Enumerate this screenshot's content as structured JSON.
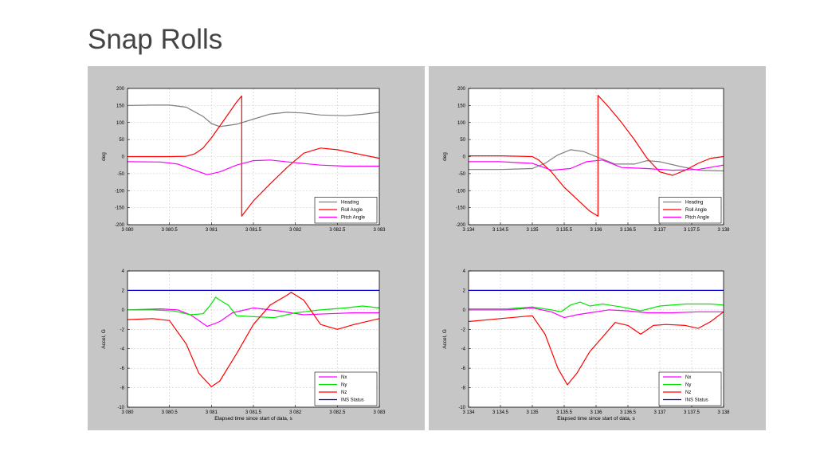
{
  "slide": {
    "title": "Snap Rolls"
  },
  "colors": {
    "Heading": "#7f7f7f",
    "Roll Angle": "#ff0000",
    "Pitch Angle": "#ff00ff",
    "Nx": "#ff00ff",
    "Ny": "#00e600",
    "Nz": "#ff0000",
    "INS Status": "#0000cc"
  },
  "panels": [
    {
      "xticklabels": [
        "3 080",
        "3 080.5",
        "3 081",
        "3 081.5",
        "3 082",
        "3 082.5",
        "3 083"
      ],
      "xlabel": "Elapsed time since start of data, s"
    },
    {
      "xticklabels": [
        "3 134",
        "3 134.5",
        "3 135",
        "3 135.5",
        "3 136",
        "3 136.5",
        "3 137",
        "3 137.5",
        "3 138"
      ],
      "xlabel": "Elapsed time since start of data, s"
    }
  ],
  "chart_data": [
    {
      "type": "line",
      "title": "",
      "xlabel": "",
      "ylabel": "deg",
      "xlim": [
        3080,
        3083
      ],
      "ylim": [
        -200,
        200
      ],
      "xticks": [
        3080,
        3080.5,
        3081,
        3081.5,
        3082,
        3082.5,
        3083
      ],
      "yticks": [
        -200,
        -150,
        -100,
        -50,
        0,
        50,
        100,
        150,
        200
      ],
      "yticklabels": [
        "-200",
        "-150",
        "-100",
        "-50",
        "0",
        "50",
        "100",
        "150",
        "200"
      ],
      "grid": true,
      "legend": "bottom-right",
      "series": [
        {
          "name": "Heading",
          "x": [
            3080,
            3080.3,
            3080.5,
            3080.7,
            3080.9,
            3081.0,
            3081.1,
            3081.3,
            3081.5,
            3081.7,
            3081.9,
            3082.1,
            3082.3,
            3082.6,
            3082.8,
            3083.0
          ],
          "y": [
            150,
            151,
            151,
            145,
            118,
            97,
            88,
            95,
            110,
            125,
            130,
            128,
            122,
            120,
            124,
            130
          ]
        },
        {
          "name": "Roll Angle",
          "x": [
            3080,
            3080.5,
            3080.7,
            3080.8,
            3080.9,
            3081.0,
            3081.1,
            3081.2,
            3081.3,
            3081.36,
            3081.36,
            3081.5,
            3081.7,
            3081.9,
            3082.1,
            3082.3,
            3082.5,
            3082.7,
            3082.9,
            3083.0
          ],
          "y": [
            0,
            0,
            1,
            8,
            25,
            55,
            90,
            125,
            160,
            178,
            -175,
            -130,
            -80,
            -32,
            10,
            25,
            20,
            10,
            0,
            -5
          ]
        },
        {
          "name": "Pitch Angle",
          "x": [
            3080,
            3080.4,
            3080.6,
            3080.8,
            3080.95,
            3081.1,
            3081.3,
            3081.5,
            3081.7,
            3082.0,
            3082.3,
            3082.6,
            3083.0
          ],
          "y": [
            -15,
            -16,
            -22,
            -40,
            -53,
            -45,
            -25,
            -12,
            -10,
            -18,
            -25,
            -28,
            -28
          ]
        }
      ]
    },
    {
      "type": "line",
      "title": "",
      "xlabel": "Elapsed time since start of data, s",
      "ylabel": "Accel, G",
      "xlim": [
        3080,
        3083
      ],
      "ylim": [
        -10,
        4
      ],
      "xticks": [
        3080,
        3080.5,
        3081,
        3081.5,
        3082,
        3082.5,
        3083
      ],
      "yticks": [
        -10,
        -8,
        -6,
        -4,
        -2,
        0,
        2,
        4
      ],
      "yticklabels": [
        "-10",
        "-8",
        "-6",
        "-4",
        "-2",
        "0",
        "2",
        "4"
      ],
      "grid": true,
      "legend": "bottom-right",
      "series": [
        {
          "name": "Nx",
          "x": [
            3080,
            3080.4,
            3080.6,
            3080.75,
            3080.95,
            3081.1,
            3081.25,
            3081.5,
            3081.8,
            3082.1,
            3082.4,
            3082.7,
            3083.0
          ],
          "y": [
            0,
            0.1,
            0,
            -0.5,
            -1.7,
            -1.2,
            -0.3,
            0.2,
            -0.1,
            -0.5,
            -0.4,
            -0.3,
            -0.3
          ]
        },
        {
          "name": "Ny",
          "x": [
            3080,
            3080.3,
            3080.55,
            3080.75,
            3080.9,
            3080.98,
            3081.05,
            3081.12,
            3081.2,
            3081.3,
            3081.5,
            3081.75,
            3082.0,
            3082.3,
            3082.6,
            3082.8,
            3083.0
          ],
          "y": [
            0,
            0,
            -0.1,
            -0.5,
            -0.4,
            0.4,
            1.3,
            0.9,
            0.5,
            -0.6,
            -0.7,
            -0.8,
            -0.3,
            0,
            0.2,
            0.4,
            0.2
          ]
        },
        {
          "name": "Nz",
          "x": [
            3080,
            3080.3,
            3080.5,
            3080.7,
            3080.85,
            3081.0,
            3081.1,
            3081.3,
            3081.5,
            3081.7,
            3081.9,
            3081.95,
            3082.1,
            3082.3,
            3082.5,
            3082.7,
            3083.0
          ],
          "y": [
            -1,
            -0.9,
            -1.1,
            -3.5,
            -6.5,
            -7.9,
            -7.3,
            -4.5,
            -1.5,
            0.5,
            1.5,
            1.8,
            1.0,
            -1.5,
            -2.0,
            -1.5,
            -0.9
          ]
        },
        {
          "name": "INS Status",
          "x": [
            3080,
            3083
          ],
          "y": [
            2,
            2
          ]
        }
      ]
    },
    {
      "type": "line",
      "title": "",
      "xlabel": "",
      "ylabel": "deg",
      "xlim": [
        3134,
        3138
      ],
      "ylim": [
        -200,
        200
      ],
      "xticks": [
        3134,
        3134.5,
        3135,
        3135.5,
        3136,
        3136.5,
        3137,
        3137.5,
        3138
      ],
      "yticks": [
        -200,
        -150,
        -100,
        -50,
        0,
        50,
        100,
        150,
        200
      ],
      "yticklabels": [
        "-200",
        "-150",
        "-100",
        "-50",
        "0",
        "50",
        "100",
        "150",
        "200"
      ],
      "grid": true,
      "legend": "bottom-right",
      "series": [
        {
          "name": "Heading",
          "x": [
            3134,
            3134.5,
            3135.0,
            3135.2,
            3135.4,
            3135.6,
            3135.8,
            3136.0,
            3136.3,
            3136.6,
            3136.8,
            3137.0,
            3137.3,
            3137.6,
            3138.0
          ],
          "y": [
            -38,
            -38,
            -35,
            -20,
            5,
            20,
            15,
            0,
            -22,
            -22,
            -12,
            -15,
            -28,
            -40,
            -42
          ]
        },
        {
          "name": "Roll Angle",
          "x": [
            3134,
            3134.5,
            3135.0,
            3135.1,
            3135.3,
            3135.5,
            3135.7,
            3135.9,
            3136.03,
            3136.03,
            3136.2,
            3136.4,
            3136.6,
            3136.8,
            3137.0,
            3137.2,
            3137.4,
            3137.6,
            3137.8,
            3138.0
          ],
          "y": [
            2,
            2,
            0,
            -10,
            -45,
            -90,
            -125,
            -160,
            -175,
            180,
            145,
            100,
            50,
            -5,
            -45,
            -55,
            -40,
            -20,
            -5,
            0
          ]
        },
        {
          "name": "Pitch Angle",
          "x": [
            3134,
            3134.5,
            3135.0,
            3135.3,
            3135.6,
            3135.85,
            3136.1,
            3136.4,
            3136.8,
            3137.2,
            3137.6,
            3138.0
          ],
          "y": [
            -15,
            -15,
            -20,
            -40,
            -35,
            -15,
            -10,
            -32,
            -35,
            -40,
            -38,
            -25
          ]
        }
      ]
    },
    {
      "type": "line",
      "title": "",
      "xlabel": "Elapsed time since start of data, s",
      "ylabel": "Accel, G",
      "xlim": [
        3134,
        3138
      ],
      "ylim": [
        -10,
        4
      ],
      "xticks": [
        3134,
        3134.5,
        3135,
        3135.5,
        3136,
        3136.5,
        3137,
        3137.5,
        3138
      ],
      "yticks": [
        -10,
        -8,
        -6,
        -4,
        -2,
        0,
        2,
        4
      ],
      "yticklabels": [
        "-10",
        "-8",
        "-6",
        "-4",
        "-2",
        "0",
        "2",
        "4"
      ],
      "grid": true,
      "legend": "bottom-right",
      "series": [
        {
          "name": "Nx",
          "x": [
            3134,
            3134.6,
            3135.0,
            3135.3,
            3135.5,
            3135.7,
            3135.9,
            3136.2,
            3136.5,
            3136.8,
            3137.2,
            3137.6,
            3138.0
          ],
          "y": [
            0,
            0,
            0.2,
            -0.2,
            -0.8,
            -0.5,
            -0.3,
            0,
            -0.1,
            -0.3,
            -0.3,
            -0.2,
            -0.2
          ]
        },
        {
          "name": "Ny",
          "x": [
            3134,
            3134.6,
            3135.0,
            3135.3,
            3135.45,
            3135.6,
            3135.75,
            3135.9,
            3136.1,
            3136.4,
            3136.7,
            3137.0,
            3137.4,
            3137.8,
            3138.0
          ],
          "y": [
            0.1,
            0.1,
            0.3,
            0,
            -0.2,
            0.5,
            0.8,
            0.4,
            0.6,
            0.3,
            -0.1,
            0.4,
            0.6,
            0.6,
            0.5
          ]
        },
        {
          "name": "Nz",
          "x": [
            3134,
            3134.5,
            3135.0,
            3135.2,
            3135.4,
            3135.55,
            3135.7,
            3135.9,
            3136.1,
            3136.3,
            3136.5,
            3136.7,
            3136.9,
            3137.1,
            3137.4,
            3137.6,
            3137.8,
            3138.0
          ],
          "y": [
            -1.2,
            -0.9,
            -0.6,
            -2.5,
            -6,
            -7.7,
            -6.5,
            -4.3,
            -2.8,
            -1.3,
            -1.6,
            -2.5,
            -1.6,
            -1.5,
            -1.6,
            -1.9,
            -1.2,
            -0.2
          ]
        },
        {
          "name": "INS Status",
          "x": [
            3134,
            3138
          ],
          "y": [
            2,
            2
          ]
        }
      ]
    }
  ]
}
